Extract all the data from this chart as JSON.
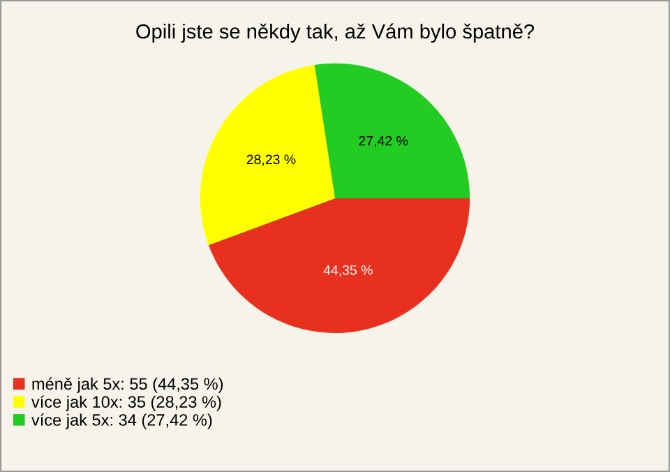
{
  "chart_data": {
    "type": "pie",
    "title": "Opili jste se někdy tak, až Vám bylo špatně?",
    "categories": [
      "méně jak 5x: 55 (44,35 %)",
      "více jak 10x: 35 (28,23 %)",
      "více jak 5x: 34 (27,42 %)"
    ],
    "values": [
      44.35,
      28.23,
      27.42
    ],
    "value_labels": [
      "44,35 %",
      "28,23 %",
      "27,42 %"
    ],
    "colors": [
      "#e8301e",
      "#ffff00",
      "#22cc22"
    ],
    "legend": "bottom left"
  }
}
